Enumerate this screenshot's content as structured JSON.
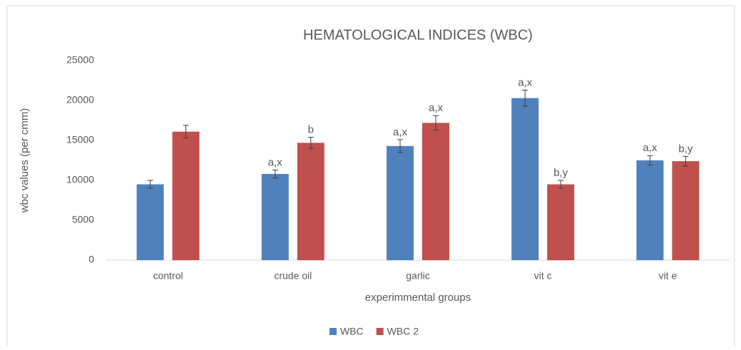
{
  "chart_data": {
    "type": "bar",
    "title": "HEMATOLOGICAL INDICES (WBC)",
    "xlabel": "experimmental groups",
    "ylabel": "wbc values (per cmm)",
    "categories": [
      "control",
      "crude oil",
      "garlic",
      "vit c",
      "vit e"
    ],
    "series": [
      {
        "name": "WBC",
        "color": "#4f81bd",
        "values": [
          9500,
          10800,
          14300,
          20300,
          12500
        ],
        "errors": [
          500,
          500,
          800,
          1000,
          600
        ],
        "labels": [
          null,
          "a,x",
          "a,x",
          "a,x",
          "a,x"
        ]
      },
      {
        "name": "WBC 2",
        "color": "#c0504d",
        "values": [
          16100,
          14700,
          17200,
          9500,
          12400
        ],
        "errors": [
          800,
          700,
          900,
          500,
          600
        ],
        "labels": [
          null,
          "b",
          "a,x",
          "b,y",
          "b,y"
        ]
      }
    ],
    "ylim": [
      0,
      25000
    ],
    "yticks": [
      0,
      5000,
      10000,
      15000,
      20000,
      25000
    ],
    "grid": false,
    "legend": "bottom"
  }
}
